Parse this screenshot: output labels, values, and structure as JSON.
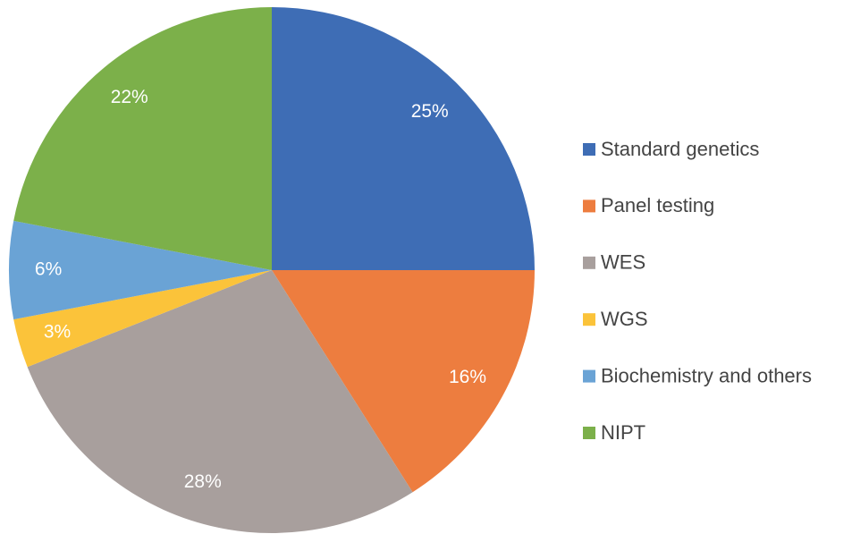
{
  "chart_data": {
    "type": "pie",
    "categories": [
      "Standard genetics",
      "Panel testing",
      "WES",
      "WGS",
      "Biochemistry and others",
      "NIPT"
    ],
    "values": [
      25,
      16,
      28,
      3,
      6,
      22
    ],
    "value_labels": [
      "25%",
      "16%",
      "28%",
      "3%",
      "6%",
      "22%"
    ],
    "colors": [
      "#3e6db5",
      "#ed7d3f",
      "#a89f9d",
      "#fbc33a",
      "#6aa3d5",
      "#7cb04a"
    ],
    "legend": "right"
  }
}
